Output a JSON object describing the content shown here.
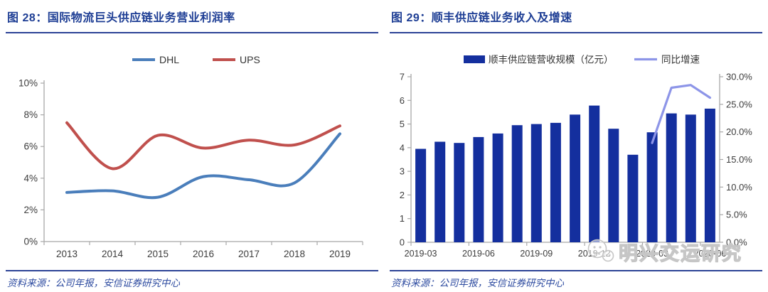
{
  "colors": {
    "title_blue": "#1d3d94",
    "rule_blue": "#2c4396",
    "source_blue": "#2d4ba0",
    "axis_gray": "#a8a8a8",
    "tick_text_gray": "#3d3d3d",
    "dhl_blue": "#4a7ebb",
    "ups_red": "#c0504d",
    "bar_navy": "#142f9e",
    "growth_periwinkle": "#8d95e8",
    "watermark_gray": "#c6c6c6"
  },
  "panels": [
    {
      "title": "图 28：国际物流巨头供应链业务营业利润率",
      "source": "资料来源：公司年报，安信证券研究中心"
    },
    {
      "title": "图 29：顺丰供应链业务收入及增速",
      "source": "资料来源：公司年报，安信证券研究中心"
    }
  ],
  "watermark": {
    "text": "明兴交运研究",
    "icon": "chat-bubbles-face-icon"
  },
  "chart_data": [
    {
      "type": "line",
      "title": "国际物流巨头供应链业务营业利润率",
      "categories": [
        "2013",
        "2014",
        "2015",
        "2016",
        "2017",
        "2018",
        "2019"
      ],
      "series": [
        {
          "name": "DHL",
          "color": "#4a7ebb",
          "values": [
            3.1,
            3.2,
            2.8,
            4.1,
            3.9,
            3.7,
            6.8
          ]
        },
        {
          "name": "UPS",
          "color": "#c0504d",
          "values": [
            7.5,
            4.6,
            6.7,
            5.9,
            6.4,
            6.1,
            7.3
          ]
        }
      ],
      "ylim": [
        0,
        10
      ],
      "ytick_step": 2,
      "ytick_suffix": "%",
      "grid": false,
      "legend_position": "top-center"
    },
    {
      "type": "bar-line",
      "title": "顺丰供应链业务收入及增速",
      "categories": [
        "2019-03",
        "2019-04",
        "2019-05",
        "2019-06",
        "2019-07",
        "2019-08",
        "2019-09",
        "2019-10",
        "2019-11",
        "2019-12",
        "2020-01",
        "2020-02",
        "2020-03",
        "2020-04",
        "2020-05",
        "2020-06"
      ],
      "x_label_every": 3,
      "x_tick_labels": [
        "2019-03",
        "2019-06",
        "2019-09",
        "2019-12",
        "2020-03",
        "2020-06"
      ],
      "bar_series": {
        "name": "顺丰供应链营收规模（亿元）",
        "color": "#142f9e",
        "axis": "left",
        "values": [
          3.95,
          4.25,
          4.2,
          4.45,
          4.6,
          4.95,
          5.0,
          5.05,
          5.4,
          5.78,
          4.8,
          3.7,
          4.65,
          5.45,
          5.4,
          5.65
        ]
      },
      "line_series": {
        "name": "同比增速",
        "color": "#8d95e8",
        "axis": "right",
        "values": [
          null,
          null,
          null,
          null,
          null,
          null,
          null,
          null,
          null,
          null,
          null,
          null,
          18.0,
          28.0,
          28.5,
          26.2
        ]
      },
      "left_ylim": [
        0,
        7
      ],
      "left_tick_step": 1,
      "right_ylim": [
        0,
        30
      ],
      "right_tick_step": 5,
      "right_tick_suffix": "%",
      "grid": false,
      "legend_position": "top"
    }
  ]
}
